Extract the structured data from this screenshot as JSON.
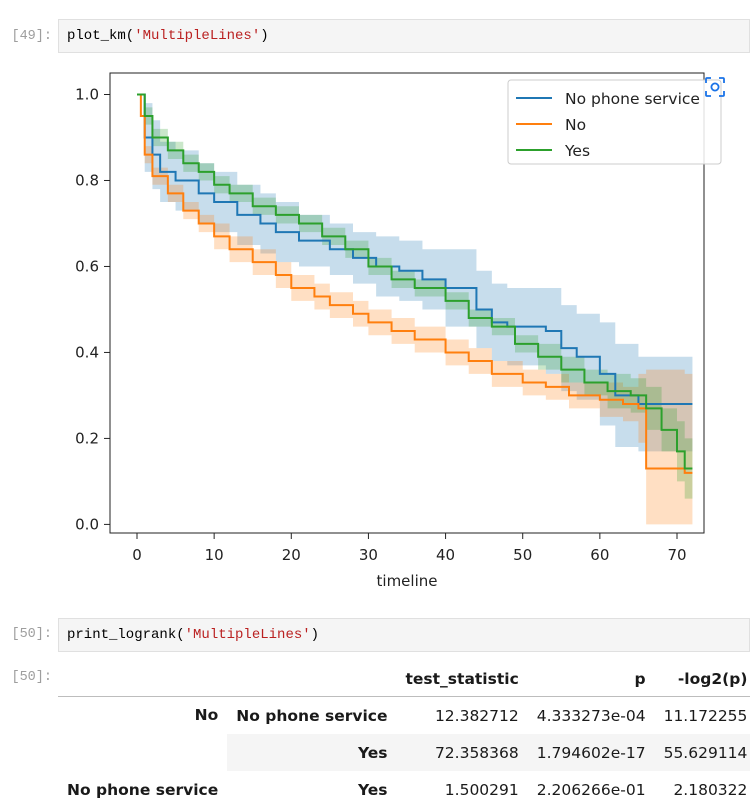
{
  "cells": {
    "in49": {
      "prompt": "[49]:",
      "func": "plot_km(",
      "arg": "'MultipleLines'",
      "close": ")"
    },
    "in50": {
      "prompt": "[50]:",
      "func": "print_logrank(",
      "arg": "'MultipleLines'",
      "close": ")"
    },
    "out50": {
      "prompt": "[50]:"
    }
  },
  "chart_data": {
    "type": "line",
    "subtype": "step (Kaplan-Meier survival with confidence bands)",
    "xlabel": "timeline",
    "ylabel": "",
    "xlim": [
      -3.5,
      73.5
    ],
    "ylim": [
      -0.02,
      1.05
    ],
    "xticks": [
      0,
      10,
      20,
      30,
      40,
      50,
      60,
      70
    ],
    "yticks": [
      0.0,
      0.2,
      0.4,
      0.6,
      0.8,
      1.0
    ],
    "xtick_labels": [
      "0",
      "10",
      "20",
      "30",
      "40",
      "50",
      "60",
      "70"
    ],
    "ytick_labels": [
      "0.0",
      "0.2",
      "0.4",
      "0.6",
      "0.8",
      "1.0"
    ],
    "legend_position": "top-right",
    "series": [
      {
        "name": "No phone service",
        "color": "#1f77b4",
        "points": [
          [
            0,
            1.0
          ],
          [
            1,
            0.9
          ],
          [
            2,
            0.86
          ],
          [
            3,
            0.82
          ],
          [
            5,
            0.8
          ],
          [
            8,
            0.77
          ],
          [
            10,
            0.75
          ],
          [
            13,
            0.72
          ],
          [
            16,
            0.7
          ],
          [
            18,
            0.68
          ],
          [
            21,
            0.66
          ],
          [
            25,
            0.64
          ],
          [
            28,
            0.62
          ],
          [
            31,
            0.6
          ],
          [
            34,
            0.59
          ],
          [
            37,
            0.57
          ],
          [
            40,
            0.55
          ],
          [
            44,
            0.5
          ],
          [
            46,
            0.47
          ],
          [
            48,
            0.46
          ],
          [
            53,
            0.45
          ],
          [
            55,
            0.41
          ],
          [
            57,
            0.39
          ],
          [
            60,
            0.35
          ],
          [
            62,
            0.3
          ],
          [
            65,
            0.28
          ],
          [
            72,
            0.28
          ]
        ],
        "ci_width": [
          [
            0,
            0.0
          ],
          [
            1,
            0.08
          ],
          [
            3,
            0.07
          ],
          [
            10,
            0.07
          ],
          [
            20,
            0.06
          ],
          [
            30,
            0.07
          ],
          [
            40,
            0.09
          ],
          [
            50,
            0.1
          ],
          [
            55,
            0.1
          ],
          [
            60,
            0.12
          ],
          [
            65,
            0.11
          ],
          [
            72,
            0.11
          ]
        ]
      },
      {
        "name": "No",
        "color": "#ff7f0e",
        "points": [
          [
            0,
            1.0
          ],
          [
            0.5,
            0.95
          ],
          [
            1,
            0.86
          ],
          [
            2,
            0.81
          ],
          [
            4,
            0.77
          ],
          [
            6,
            0.73
          ],
          [
            8,
            0.7
          ],
          [
            10,
            0.67
          ],
          [
            12,
            0.64
          ],
          [
            15,
            0.61
          ],
          [
            18,
            0.58
          ],
          [
            20,
            0.55
          ],
          [
            23,
            0.53
          ],
          [
            25,
            0.51
          ],
          [
            28,
            0.49
          ],
          [
            30,
            0.47
          ],
          [
            33,
            0.45
          ],
          [
            36,
            0.43
          ],
          [
            40,
            0.4
          ],
          [
            43,
            0.38
          ],
          [
            46,
            0.35
          ],
          [
            50,
            0.33
          ],
          [
            53,
            0.32
          ],
          [
            56,
            0.3
          ],
          [
            60,
            0.29
          ],
          [
            63,
            0.28
          ],
          [
            65,
            0.27
          ],
          [
            66,
            0.13
          ],
          [
            70,
            0.13
          ],
          [
            71,
            0.12
          ],
          [
            72,
            0.12
          ]
        ],
        "ci_width": [
          [
            0,
            0.0
          ],
          [
            1,
            0.02
          ],
          [
            10,
            0.03
          ],
          [
            20,
            0.03
          ],
          [
            30,
            0.03
          ],
          [
            40,
            0.03
          ],
          [
            50,
            0.03
          ],
          [
            60,
            0.04
          ],
          [
            65,
            0.08
          ],
          [
            66,
            0.23
          ],
          [
            72,
            0.24
          ]
        ]
      },
      {
        "name": "Yes",
        "color": "#2ca02c",
        "points": [
          [
            0,
            1.0
          ],
          [
            1,
            0.95
          ],
          [
            2,
            0.9
          ],
          [
            4,
            0.87
          ],
          [
            6,
            0.84
          ],
          [
            8,
            0.82
          ],
          [
            10,
            0.79
          ],
          [
            12,
            0.77
          ],
          [
            15,
            0.74
          ],
          [
            18,
            0.72
          ],
          [
            21,
            0.7
          ],
          [
            24,
            0.67
          ],
          [
            27,
            0.64
          ],
          [
            30,
            0.6
          ],
          [
            33,
            0.57
          ],
          [
            36,
            0.55
          ],
          [
            40,
            0.52
          ],
          [
            43,
            0.48
          ],
          [
            46,
            0.46
          ],
          [
            49,
            0.42
          ],
          [
            52,
            0.39
          ],
          [
            55,
            0.36
          ],
          [
            58,
            0.33
          ],
          [
            61,
            0.31
          ],
          [
            64,
            0.3
          ],
          [
            66,
            0.27
          ],
          [
            68,
            0.22
          ],
          [
            70,
            0.17
          ],
          [
            71,
            0.13
          ],
          [
            72,
            0.13
          ]
        ],
        "ci_width": [
          [
            0,
            0.0
          ],
          [
            1,
            0.02
          ],
          [
            10,
            0.02
          ],
          [
            20,
            0.02
          ],
          [
            30,
            0.02
          ],
          [
            40,
            0.02
          ],
          [
            50,
            0.03
          ],
          [
            60,
            0.04
          ],
          [
            66,
            0.05
          ],
          [
            70,
            0.07
          ],
          [
            72,
            0.08
          ]
        ]
      }
    ]
  },
  "table": {
    "columns": [
      "test_statistic",
      "p",
      "-log2(p)"
    ],
    "rows": [
      {
        "group1": "No",
        "group2": "No phone service",
        "test_statistic": "12.382712",
        "p": "4.333273e-04",
        "log2p": "11.172255"
      },
      {
        "group1": "",
        "group2": "Yes",
        "test_statistic": "72.358368",
        "p": "1.794602e-17",
        "log2p": "55.629114"
      },
      {
        "group1": "No phone service",
        "group2": "Yes",
        "test_statistic": "1.500291",
        "p": "2.206266e-01",
        "log2p": "2.180322"
      }
    ]
  }
}
